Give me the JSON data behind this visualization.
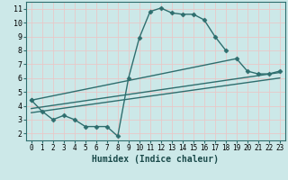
{
  "background_color": "#cce8e8",
  "grid_color": "#e8c8c8",
  "line_color": "#2e6e6e",
  "line_width": 1.0,
  "marker": "D",
  "marker_size": 2.5,
  "xlabel": "Humidex (Indice chaleur)",
  "xlabel_fontsize": 7,
  "tick_fontsize": 6,
  "xlim": [
    -0.5,
    23.5
  ],
  "ylim": [
    1.5,
    11.5
  ],
  "xticks": [
    0,
    1,
    2,
    3,
    4,
    5,
    6,
    7,
    8,
    9,
    10,
    11,
    12,
    13,
    14,
    15,
    16,
    17,
    18,
    19,
    20,
    21,
    22,
    23
  ],
  "yticks": [
    2,
    3,
    4,
    5,
    6,
    7,
    8,
    9,
    10,
    11
  ],
  "series": [
    {
      "x": [
        0,
        1,
        2,
        3,
        4,
        5,
        6,
        7,
        8,
        9,
        10,
        11,
        12,
        13,
        14,
        15,
        16,
        17,
        18
      ],
      "y": [
        4.4,
        3.6,
        3.0,
        3.3,
        3.0,
        2.5,
        2.5,
        2.5,
        1.8,
        6.0,
        8.9,
        10.8,
        11.05,
        10.7,
        10.6,
        10.6,
        10.2,
        9.0,
        8.0
      ],
      "has_markers": true
    },
    {
      "x": [
        0,
        23
      ],
      "y": [
        3.5,
        6.0
      ],
      "has_markers": false
    },
    {
      "x": [
        0,
        23
      ],
      "y": [
        3.8,
        6.4
      ],
      "has_markers": false
    },
    {
      "x": [
        0,
        19,
        20,
        21,
        22,
        23
      ],
      "y": [
        4.4,
        7.4,
        6.5,
        6.3,
        6.3,
        6.5
      ],
      "has_markers": true
    }
  ]
}
